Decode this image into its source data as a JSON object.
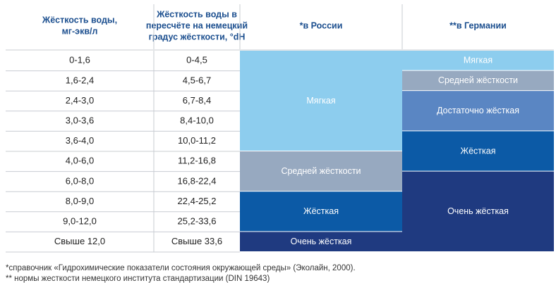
{
  "header": [
    [
      "Жёсткость воды,",
      "мг-экв/л"
    ],
    [
      "Жёсткость воды в",
      "пересчёте на немецкий",
      "градус жёсткости, °dH"
    ],
    [
      "*в России"
    ],
    [
      "**в Германии"
    ]
  ],
  "rows": [
    [
      "0-1,6",
      "0-4,5"
    ],
    [
      "1,6-2,4",
      "4,5-6,7"
    ],
    [
      "2,4-3,0",
      "6,7-8,4"
    ],
    [
      "3,0-3,6",
      "8,4-10,0"
    ],
    [
      "3,6-4,0",
      "10,0-11,2"
    ],
    [
      "4,0-6,0",
      "11,2-16,8"
    ],
    [
      "6,0-8,0",
      "16,8-22,4"
    ],
    [
      "8,0-9,0",
      "22,4-25,2"
    ],
    [
      "9,0-12,0",
      "25,2-33,6"
    ],
    [
      "Свыше 12,0",
      "Свыше 33,6"
    ]
  ],
  "russia": [
    "Мягкая",
    "Средней жёсткости",
    "Жёсткая",
    "Очень жёсткая"
  ],
  "germany": [
    "Мягкая",
    "Средней жёсткости",
    "Достаточно жёсткая",
    "Жёсткая",
    "Очень жёсткая"
  ],
  "footnotes": [
    "*справочник «Гидрохимические показатели состояния окружающей среды» (Эколайн, 2000).",
    "** нормы жесткости немецкого института стандартизации (DIN 19643)"
  ]
}
